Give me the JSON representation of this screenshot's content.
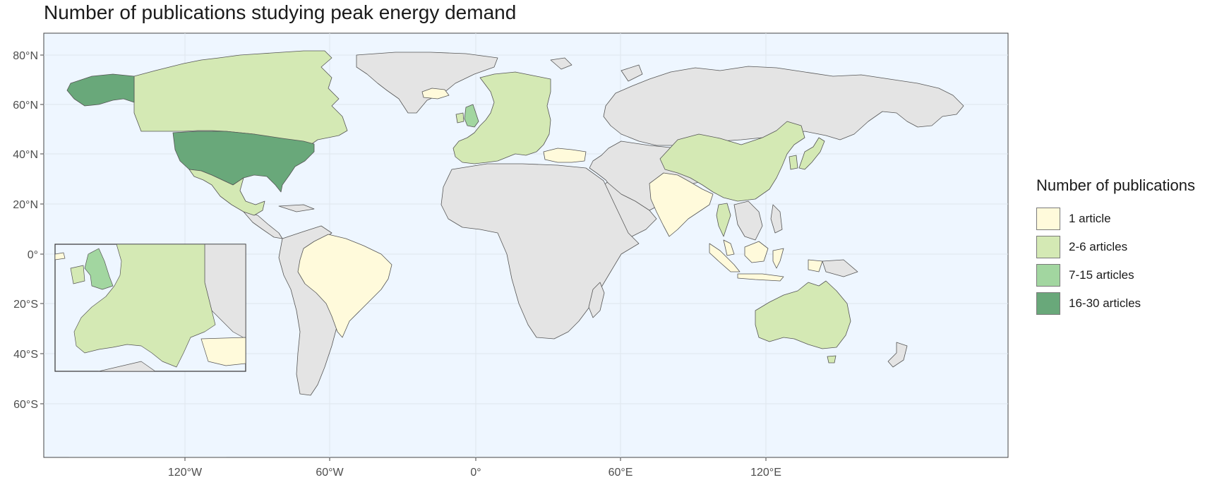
{
  "title": "Number of publications studying peak energy demand",
  "axes": {
    "lat_ticks": [
      "80°N",
      "60°N",
      "40°N",
      "20°N",
      "0°",
      "20°S",
      "40°S",
      "60°S"
    ],
    "lon_ticks": [
      "120°W",
      "60°W",
      "0°",
      "60°E",
      "120°E"
    ]
  },
  "legend": {
    "title": "Number of publications",
    "items": [
      {
        "label": "1 article",
        "color": "#fffadb"
      },
      {
        "label": "2-6 articles",
        "color": "#d4e9b4"
      },
      {
        "label": "7-15 articles",
        "color": "#a2d6a0"
      },
      {
        "label": "16-30 articles",
        "color": "#69a87a"
      }
    ]
  },
  "colors": {
    "ocean": "#eef6ff",
    "no_data": "#e4e4e4",
    "border": "#555555"
  },
  "regions": [
    {
      "name": "United States",
      "category": "16-30 articles"
    },
    {
      "name": "Alaska",
      "category": "16-30 articles"
    },
    {
      "name": "Canada",
      "category": "2-6 articles"
    },
    {
      "name": "Mexico",
      "category": "2-6 articles"
    },
    {
      "name": "Brazil",
      "category": "1 article"
    },
    {
      "name": "United Kingdom",
      "category": "7-15 articles"
    },
    {
      "name": "Europe",
      "category": "2-6 articles"
    },
    {
      "name": "Turkey",
      "category": "1 article"
    },
    {
      "name": "India",
      "category": "1 article"
    },
    {
      "name": "China",
      "category": "2-6 articles"
    },
    {
      "name": "Japan",
      "category": "2-6 articles"
    },
    {
      "name": "South Korea",
      "category": "2-6 articles"
    },
    {
      "name": "Thailand",
      "category": "2-6 articles"
    },
    {
      "name": "Malaysia",
      "category": "1 article"
    },
    {
      "name": "Indonesia",
      "category": "1 article"
    },
    {
      "name": "Australia",
      "category": "2-6 articles"
    },
    {
      "name": "Iceland",
      "category": "1 article"
    }
  ]
}
